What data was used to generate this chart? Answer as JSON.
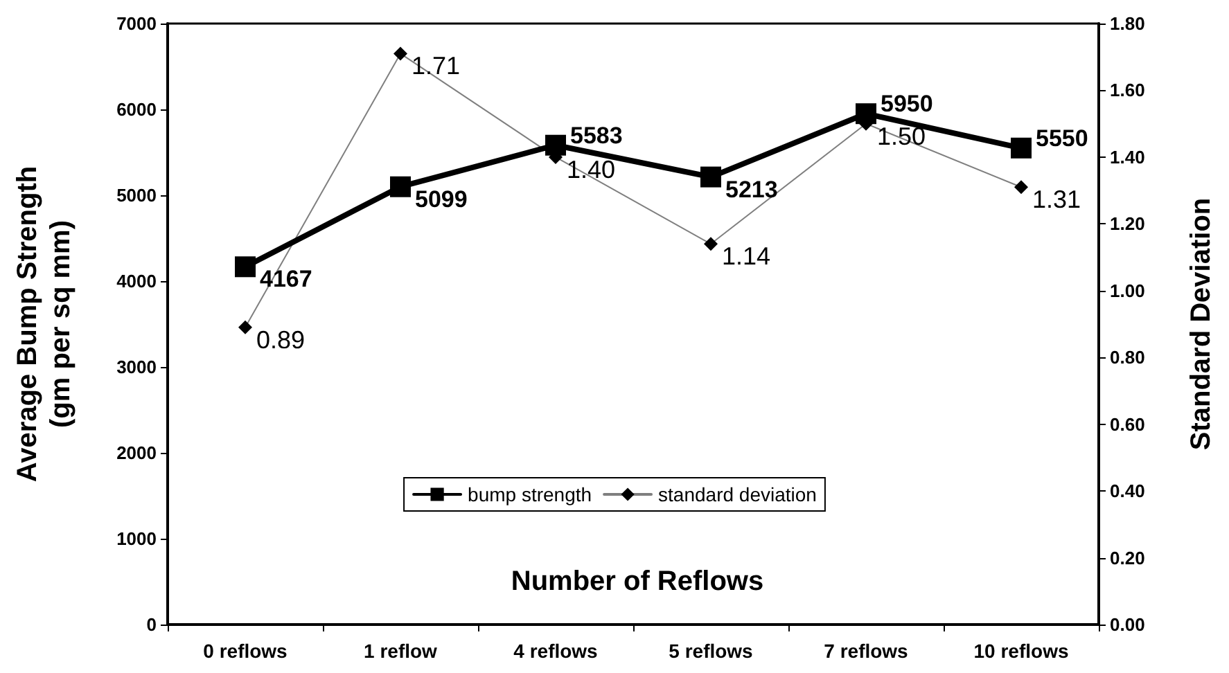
{
  "chart_data": {
    "type": "line",
    "xlabel": "Number of Reflows",
    "ylabel": "Average Bump Strength\n(gm per sq mm)",
    "y2label": "Standard Deviation",
    "categories": [
      "0 reflows",
      "1 reflow",
      "4 reflows",
      "5 reflows",
      "7 reflows",
      "10 reflows"
    ],
    "series": [
      {
        "name": "bump strength",
        "color": "#000000",
        "marker": "square",
        "values": [
          4167,
          5099,
          5583,
          5213,
          5950,
          5550
        ],
        "value_labels": [
          "4167",
          "5099",
          "5583",
          "5213",
          "5950",
          "5550"
        ]
      },
      {
        "name": "standard deviation",
        "color": "#000000",
        "marker": "diamond",
        "axis": "y2",
        "values": [
          0.89,
          1.71,
          1.4,
          1.14,
          1.5,
          1.31
        ],
        "value_labels": [
          "0.89",
          "1.71",
          "1.40",
          "1.14",
          "1.50",
          "1.31"
        ]
      }
    ],
    "ylim": [
      0,
      7000
    ],
    "yticks": [
      0,
      1000,
      2000,
      3000,
      4000,
      5000,
      6000,
      7000
    ],
    "y2lim": [
      0,
      1.8
    ],
    "y2ticks": [
      {
        "value": 0,
        "label": "0.00"
      },
      {
        "value": 0.2,
        "label": "0.20"
      },
      {
        "value": 0.4,
        "label": "0.40"
      },
      {
        "value": 0.6,
        "label": "0.60"
      },
      {
        "value": 0.8,
        "label": "0.80"
      },
      {
        "value": 1,
        "label": "1.00"
      },
      {
        "value": 1.2,
        "label": "1.20"
      },
      {
        "value": 1.4,
        "label": "1.40"
      },
      {
        "value": 1.6,
        "label": "1.60"
      },
      {
        "value": 1.8,
        "label": "1.80"
      }
    ],
    "grid": false,
    "legend": "bottom",
    "line_style": "solid"
  }
}
